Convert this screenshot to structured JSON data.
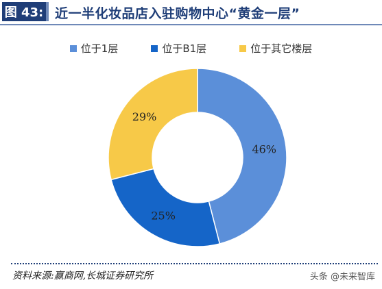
{
  "figure": {
    "tag": "图 43:",
    "title": "近一半化妆品店入驻购物中心“黄金一层”"
  },
  "chart_data": {
    "type": "pie",
    "title": "",
    "donut": true,
    "legend_position": "top",
    "categories": [
      "位于1层",
      "位于B1层",
      "位于其它楼层"
    ],
    "values": [
      46,
      25,
      29
    ],
    "labels": [
      "46%",
      "25%",
      "29%"
    ],
    "colors": [
      "#5b8fd9",
      "#1565c8",
      "#f7c948"
    ],
    "unit": "%"
  },
  "footer": {
    "source": "资料来源:赢商网,长城证券研究所",
    "watermark": "头条 @未来智库"
  }
}
